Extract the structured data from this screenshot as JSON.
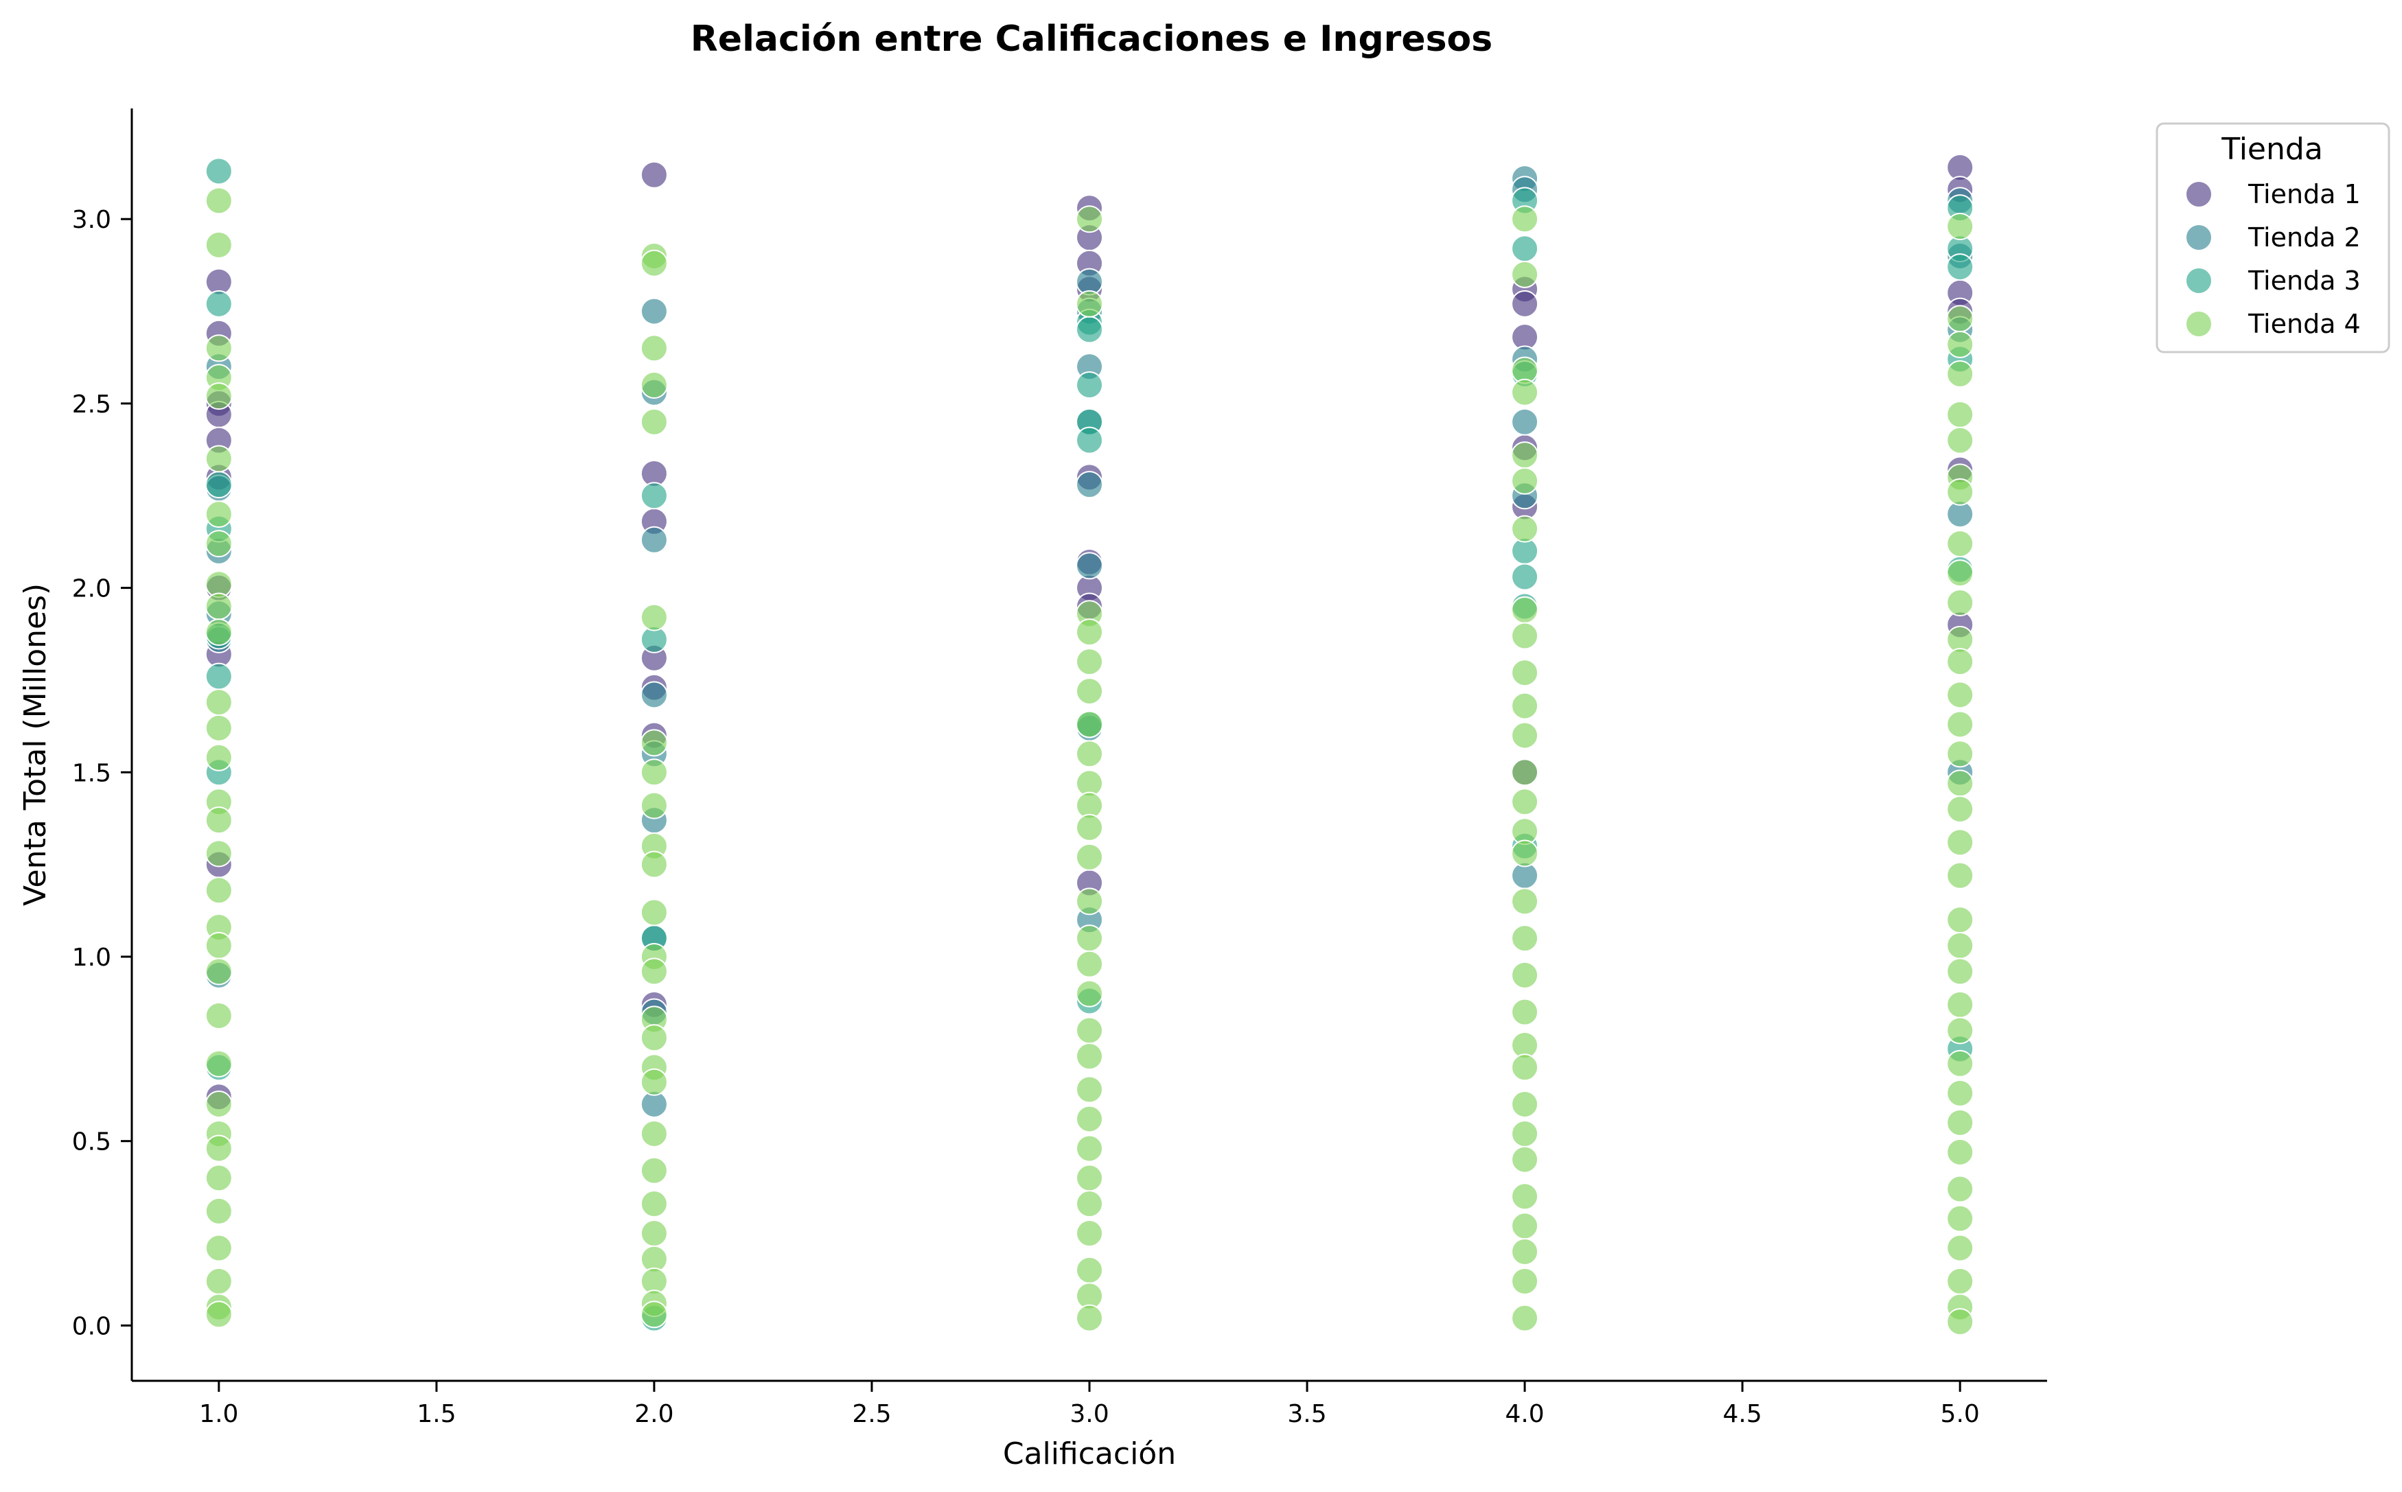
{
  "chart_data": {
    "type": "scatter",
    "title": "Relación entre Calificaciones e Ingresos",
    "xlabel": "Calificación",
    "ylabel": "Venta Total (Millones)",
    "xlim": [
      0.8,
      5.2
    ],
    "ylim": [
      -0.15,
      3.3
    ],
    "xticks": [
      "1.0",
      "1.5",
      "2.0",
      "2.5",
      "3.0",
      "3.5",
      "4.0",
      "4.5",
      "5.0"
    ],
    "yticks": [
      "0.0",
      "0.5",
      "1.0",
      "1.5",
      "2.0",
      "2.5",
      "3.0"
    ],
    "grid": false,
    "legend": {
      "title": "Tienda",
      "placement": "top-right, outside plot"
    },
    "marker_alpha": 0.6,
    "series": [
      {
        "name": "Tienda 1",
        "color": "#46327e",
        "points": [
          [
            1,
            2.83
          ],
          [
            1,
            2.69
          ],
          [
            1,
            2.5
          ],
          [
            1,
            2.47
          ],
          [
            1,
            2.4
          ],
          [
            1,
            2.3
          ],
          [
            1,
            2.0
          ],
          [
            1,
            1.82
          ],
          [
            1,
            1.25
          ],
          [
            1,
            0.62
          ],
          [
            2,
            3.12
          ],
          [
            2,
            2.31
          ],
          [
            2,
            2.18
          ],
          [
            2,
            1.81
          ],
          [
            2,
            1.73
          ],
          [
            2,
            1.6
          ],
          [
            2,
            0.87
          ],
          [
            3,
            3.03
          ],
          [
            3,
            2.95
          ],
          [
            3,
            2.88
          ],
          [
            3,
            2.81
          ],
          [
            3,
            2.3
          ],
          [
            3,
            2.07
          ],
          [
            3,
            2.0
          ],
          [
            3,
            1.95
          ],
          [
            3,
            1.2
          ],
          [
            4,
            2.81
          ],
          [
            4,
            2.77
          ],
          [
            4,
            2.68
          ],
          [
            4,
            2.38
          ],
          [
            4,
            2.22
          ],
          [
            4,
            1.5
          ],
          [
            5,
            3.14
          ],
          [
            5,
            3.08
          ],
          [
            5,
            2.8
          ],
          [
            5,
            2.75
          ],
          [
            5,
            2.32
          ],
          [
            5,
            1.9
          ]
        ]
      },
      {
        "name": "Tienda 2",
        "color": "#277f8e",
        "points": [
          [
            1,
            2.6
          ],
          [
            1,
            2.27
          ],
          [
            1,
            2.1
          ],
          [
            1,
            1.93
          ],
          [
            1,
            1.86
          ],
          [
            1,
            0.95
          ],
          [
            2,
            2.75
          ],
          [
            2,
            2.53
          ],
          [
            2,
            2.13
          ],
          [
            2,
            1.71
          ],
          [
            2,
            1.55
          ],
          [
            2,
            1.37
          ],
          [
            2,
            1.05
          ],
          [
            2,
            0.85
          ],
          [
            2,
            0.6
          ],
          [
            3,
            2.83
          ],
          [
            3,
            2.75
          ],
          [
            3,
            2.6
          ],
          [
            3,
            2.45
          ],
          [
            3,
            2.28
          ],
          [
            3,
            2.06
          ],
          [
            3,
            1.62
          ],
          [
            3,
            1.1
          ],
          [
            4,
            3.11
          ],
          [
            4,
            3.08
          ],
          [
            4,
            2.62
          ],
          [
            4,
            2.45
          ],
          [
            4,
            2.25
          ],
          [
            4,
            1.22
          ],
          [
            5,
            3.05
          ],
          [
            5,
            2.9
          ],
          [
            5,
            2.7
          ],
          [
            5,
            2.2
          ],
          [
            5,
            1.5
          ]
        ]
      },
      {
        "name": "Tienda 3",
        "color": "#1fa187",
        "points": [
          [
            1,
            3.13
          ],
          [
            1,
            2.77
          ],
          [
            1,
            2.28
          ],
          [
            1,
            2.16
          ],
          [
            1,
            1.87
          ],
          [
            1,
            1.76
          ],
          [
            1,
            1.5
          ],
          [
            1,
            0.7
          ],
          [
            2,
            2.25
          ],
          [
            2,
            1.86
          ],
          [
            2,
            1.05
          ],
          [
            2,
            0.02
          ],
          [
            3,
            2.72
          ],
          [
            3,
            2.7
          ],
          [
            3,
            2.55
          ],
          [
            3,
            2.45
          ],
          [
            3,
            2.4
          ],
          [
            3,
            1.63
          ],
          [
            3,
            0.88
          ],
          [
            4,
            3.05
          ],
          [
            4,
            2.92
          ],
          [
            4,
            2.58
          ],
          [
            4,
            2.1
          ],
          [
            4,
            2.03
          ],
          [
            4,
            1.95
          ],
          [
            4,
            1.3
          ],
          [
            5,
            3.03
          ],
          [
            5,
            2.92
          ],
          [
            5,
            2.87
          ],
          [
            5,
            2.62
          ],
          [
            5,
            2.05
          ],
          [
            5,
            0.75
          ]
        ]
      },
      {
        "name": "Tienda 4",
        "color": "#7ad151",
        "points": [
          [
            1,
            3.05
          ],
          [
            1,
            2.93
          ],
          [
            1,
            2.65
          ],
          [
            1,
            2.57
          ],
          [
            1,
            2.52
          ],
          [
            1,
            2.35
          ],
          [
            1,
            2.2
          ],
          [
            1,
            2.12
          ],
          [
            1,
            2.01
          ],
          [
            1,
            1.95
          ],
          [
            1,
            1.88
          ],
          [
            1,
            1.69
          ],
          [
            1,
            1.62
          ],
          [
            1,
            1.54
          ],
          [
            1,
            1.42
          ],
          [
            1,
            1.37
          ],
          [
            1,
            1.28
          ],
          [
            1,
            1.18
          ],
          [
            1,
            1.08
          ],
          [
            1,
            1.03
          ],
          [
            1,
            0.96
          ],
          [
            1,
            0.84
          ],
          [
            1,
            0.71
          ],
          [
            1,
            0.6
          ],
          [
            1,
            0.52
          ],
          [
            1,
            0.48
          ],
          [
            1,
            0.4
          ],
          [
            1,
            0.31
          ],
          [
            1,
            0.21
          ],
          [
            1,
            0.12
          ],
          [
            1,
            0.05
          ],
          [
            1,
            0.03
          ],
          [
            2,
            2.9
          ],
          [
            2,
            2.88
          ],
          [
            2,
            2.65
          ],
          [
            2,
            2.55
          ],
          [
            2,
            2.45
          ],
          [
            2,
            1.92
          ],
          [
            2,
            1.58
          ],
          [
            2,
            1.5
          ],
          [
            2,
            1.41
          ],
          [
            2,
            1.3
          ],
          [
            2,
            1.25
          ],
          [
            2,
            1.12
          ],
          [
            2,
            1.0
          ],
          [
            2,
            0.96
          ],
          [
            2,
            0.83
          ],
          [
            2,
            0.78
          ],
          [
            2,
            0.7
          ],
          [
            2,
            0.66
          ],
          [
            2,
            0.52
          ],
          [
            2,
            0.42
          ],
          [
            2,
            0.33
          ],
          [
            2,
            0.25
          ],
          [
            2,
            0.18
          ],
          [
            2,
            0.12
          ],
          [
            2,
            0.06
          ],
          [
            2,
            0.03
          ],
          [
            3,
            3.0
          ],
          [
            3,
            2.77
          ],
          [
            3,
            1.93
          ],
          [
            3,
            1.88
          ],
          [
            3,
            1.8
          ],
          [
            3,
            1.72
          ],
          [
            3,
            1.63
          ],
          [
            3,
            1.55
          ],
          [
            3,
            1.47
          ],
          [
            3,
            1.41
          ],
          [
            3,
            1.35
          ],
          [
            3,
            1.27
          ],
          [
            3,
            1.15
          ],
          [
            3,
            1.05
          ],
          [
            3,
            0.98
          ],
          [
            3,
            0.9
          ],
          [
            3,
            0.8
          ],
          [
            3,
            0.73
          ],
          [
            3,
            0.64
          ],
          [
            3,
            0.56
          ],
          [
            3,
            0.48
          ],
          [
            3,
            0.4
          ],
          [
            3,
            0.33
          ],
          [
            3,
            0.25
          ],
          [
            3,
            0.15
          ],
          [
            3,
            0.08
          ],
          [
            3,
            0.02
          ],
          [
            4,
            3.0
          ],
          [
            4,
            2.85
          ],
          [
            4,
            2.59
          ],
          [
            4,
            2.53
          ],
          [
            4,
            2.36
          ],
          [
            4,
            2.29
          ],
          [
            4,
            2.16
          ],
          [
            4,
            1.94
          ],
          [
            4,
            1.87
          ],
          [
            4,
            1.77
          ],
          [
            4,
            1.68
          ],
          [
            4,
            1.6
          ],
          [
            4,
            1.5
          ],
          [
            4,
            1.42
          ],
          [
            4,
            1.34
          ],
          [
            4,
            1.28
          ],
          [
            4,
            1.15
          ],
          [
            4,
            1.05
          ],
          [
            4,
            0.95
          ],
          [
            4,
            0.85
          ],
          [
            4,
            0.76
          ],
          [
            4,
            0.7
          ],
          [
            4,
            0.6
          ],
          [
            4,
            0.52
          ],
          [
            4,
            0.45
          ],
          [
            4,
            0.35
          ],
          [
            4,
            0.27
          ],
          [
            4,
            0.2
          ],
          [
            4,
            0.12
          ],
          [
            4,
            0.02
          ],
          [
            5,
            2.98
          ],
          [
            5,
            2.73
          ],
          [
            5,
            2.66
          ],
          [
            5,
            2.58
          ],
          [
            5,
            2.47
          ],
          [
            5,
            2.4
          ],
          [
            5,
            2.3
          ],
          [
            5,
            2.26
          ],
          [
            5,
            2.12
          ],
          [
            5,
            2.04
          ],
          [
            5,
            1.96
          ],
          [
            5,
            1.86
          ],
          [
            5,
            1.8
          ],
          [
            5,
            1.71
          ],
          [
            5,
            1.63
          ],
          [
            5,
            1.55
          ],
          [
            5,
            1.47
          ],
          [
            5,
            1.4
          ],
          [
            5,
            1.31
          ],
          [
            5,
            1.22
          ],
          [
            5,
            1.1
          ],
          [
            5,
            1.03
          ],
          [
            5,
            0.96
          ],
          [
            5,
            0.87
          ],
          [
            5,
            0.8
          ],
          [
            5,
            0.71
          ],
          [
            5,
            0.63
          ],
          [
            5,
            0.55
          ],
          [
            5,
            0.47
          ],
          [
            5,
            0.37
          ],
          [
            5,
            0.29
          ],
          [
            5,
            0.21
          ],
          [
            5,
            0.12
          ],
          [
            5,
            0.05
          ],
          [
            5,
            0.01
          ]
        ]
      }
    ]
  }
}
